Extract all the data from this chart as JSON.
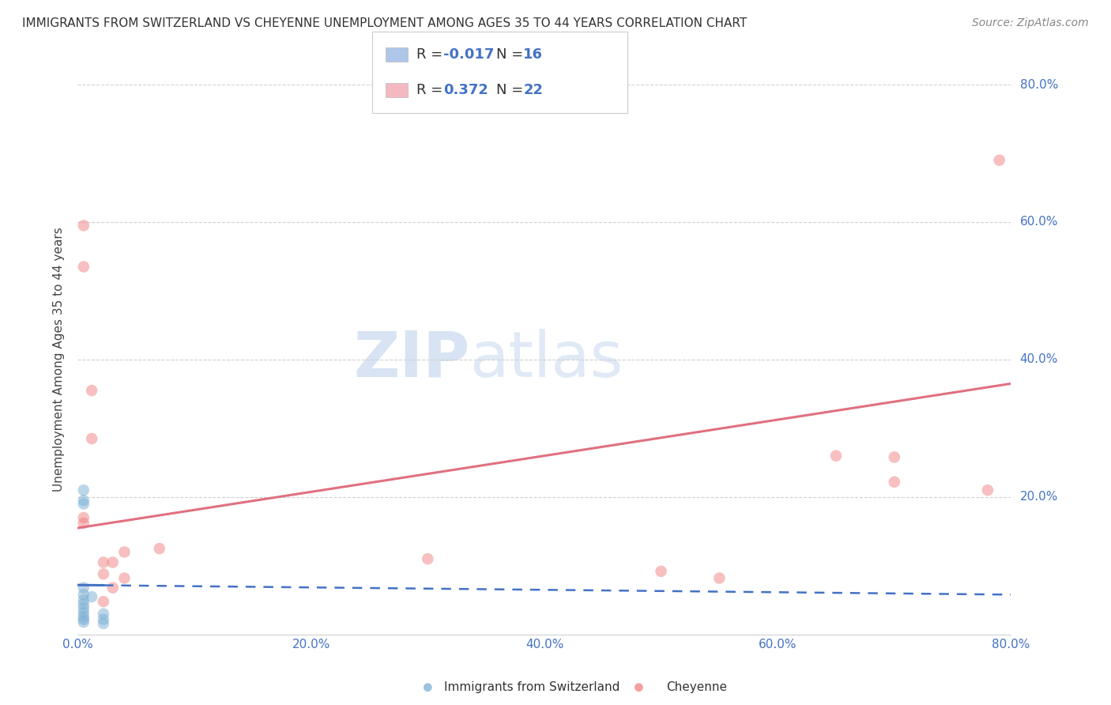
{
  "title": "IMMIGRANTS FROM SWITZERLAND VS CHEYENNE UNEMPLOYMENT AMONG AGES 35 TO 44 YEARS CORRELATION CHART",
  "source": "Source: ZipAtlas.com",
  "ylabel": "Unemployment Among Ages 35 to 44 years",
  "xlim": [
    0.0,
    0.8
  ],
  "ylim": [
    0.0,
    0.8
  ],
  "xticks": [
    0.0,
    0.2,
    0.4,
    0.6,
    0.8
  ],
  "yticks": [
    0.2,
    0.4,
    0.6,
    0.8
  ],
  "ytick_labels_right": [
    "20.0%",
    "40.0%",
    "60.0%",
    "80.0%"
  ],
  "xtick_labels": [
    "0.0%",
    "20.0%",
    "40.0%",
    "60.0%",
    "80.0%"
  ],
  "legend_entries": [
    {
      "label": "Immigrants from Switzerland",
      "color": "#aec6e8",
      "R": "-0.017",
      "N": "16"
    },
    {
      "label": "Cheyenne",
      "color": "#f4b8c1",
      "R": "0.372",
      "N": "22"
    }
  ],
  "blue_scatter": [
    [
      0.005,
      0.21
    ],
    [
      0.005,
      0.19
    ],
    [
      0.005,
      0.195
    ],
    [
      0.005,
      0.068
    ],
    [
      0.005,
      0.058
    ],
    [
      0.005,
      0.05
    ],
    [
      0.005,
      0.044
    ],
    [
      0.005,
      0.038
    ],
    [
      0.005,
      0.032
    ],
    [
      0.005,
      0.026
    ],
    [
      0.005,
      0.022
    ],
    [
      0.005,
      0.018
    ],
    [
      0.012,
      0.055
    ],
    [
      0.022,
      0.03
    ],
    [
      0.022,
      0.022
    ],
    [
      0.022,
      0.016
    ]
  ],
  "pink_scatter": [
    [
      0.005,
      0.595
    ],
    [
      0.005,
      0.535
    ],
    [
      0.005,
      0.17
    ],
    [
      0.005,
      0.162
    ],
    [
      0.012,
      0.355
    ],
    [
      0.012,
      0.285
    ],
    [
      0.022,
      0.105
    ],
    [
      0.022,
      0.088
    ],
    [
      0.022,
      0.048
    ],
    [
      0.03,
      0.105
    ],
    [
      0.03,
      0.068
    ],
    [
      0.04,
      0.12
    ],
    [
      0.04,
      0.082
    ],
    [
      0.07,
      0.125
    ],
    [
      0.3,
      0.11
    ],
    [
      0.5,
      0.092
    ],
    [
      0.55,
      0.082
    ],
    [
      0.65,
      0.26
    ],
    [
      0.7,
      0.258
    ],
    [
      0.7,
      0.222
    ],
    [
      0.78,
      0.21
    ],
    [
      0.79,
      0.69
    ]
  ],
  "blue_trend": {
    "x_start": 0.0,
    "x_end": 0.8,
    "y_start": 0.072,
    "y_end": 0.058
  },
  "pink_trend": {
    "x_start": 0.0,
    "x_end": 0.8,
    "y_start": 0.155,
    "y_end": 0.365
  },
  "blue_trend_solid_end": 0.022,
  "watermark_zip": "ZIP",
  "watermark_atlas": "atlas",
  "background_color": "#ffffff",
  "grid_color": "#d0d0d0",
  "scatter_size": 110,
  "scatter_alpha": 0.5,
  "blue_scatter_color": "#7bafd4",
  "pink_scatter_color": "#f08080",
  "blue_line_color": "#4472c4",
  "pink_line_color": "#e07080",
  "tick_color": "#4472c4",
  "title_fontsize": 11,
  "source_fontsize": 10,
  "ylabel_fontsize": 11,
  "tick_fontsize": 11,
  "legend_fontsize": 13
}
